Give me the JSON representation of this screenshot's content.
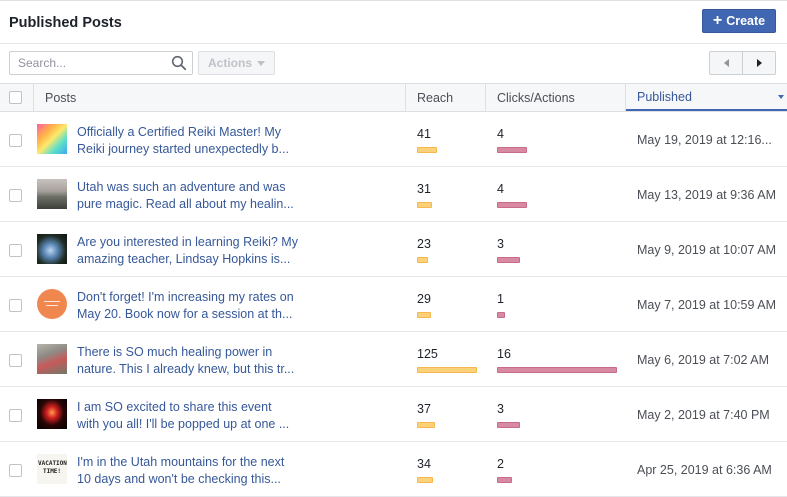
{
  "header": {
    "title": "Published Posts",
    "create_label": "Create"
  },
  "toolbar": {
    "search_placeholder": "Search...",
    "actions_label": "Actions"
  },
  "columns": {
    "posts": "Posts",
    "reach": "Reach",
    "clicks": "Clicks/Actions",
    "published": "Published"
  },
  "max_metric": 125,
  "rows": [
    {
      "text1": "Officially a Certified Reiki Master! My",
      "text2": "Reiki journey started unexpectedly b...",
      "reach": 41,
      "clicks": 4,
      "date": "May 19, 2019 at 12:16...",
      "thumb": "gradient-rainbow"
    },
    {
      "text1": "Utah was such an adventure and was",
      "text2": "pure magic. Read all about my healin...",
      "reach": 31,
      "clicks": 4,
      "date": "May 13, 2019 at 9:36 AM",
      "thumb": "road-landscape"
    },
    {
      "text1": "Are you interested in learning Reiki? My",
      "text2": "amazing teacher, Lindsay Hopkins is...",
      "reach": 23,
      "clicks": 3,
      "date": "May 9, 2019 at 10:07 AM",
      "thumb": "crystal-photo"
    },
    {
      "text1": "Don't forget! I'm increasing my rates on",
      "text2": "May 20. Book now for a session at th...",
      "reach": 29,
      "clicks": 1,
      "date": "May 7, 2019 at 10:59 AM",
      "thumb": "orange-logo"
    },
    {
      "text1": "There is SO much healing power in",
      "text2": "nature. This I already knew, but this tr...",
      "reach": 125,
      "clicks": 16,
      "date": "May 6, 2019 at 7:02 AM",
      "thumb": "nature-photo"
    },
    {
      "text1": "I am SO excited to share this event",
      "text2": "with you all! I'll be popped up at one ...",
      "reach": 37,
      "clicks": 3,
      "date": "May 2, 2019 at 7:40 PM",
      "thumb": "event-lights"
    },
    {
      "text1": "I'm in the Utah mountains for the next",
      "text2": "10 days and won't be checking this...",
      "reach": 34,
      "clicks": 2,
      "date": "Apr 25, 2019 at 6:36 AM",
      "thumb": "vacation-time-text",
      "thumb_text": "VACATION TIME!"
    }
  ]
}
